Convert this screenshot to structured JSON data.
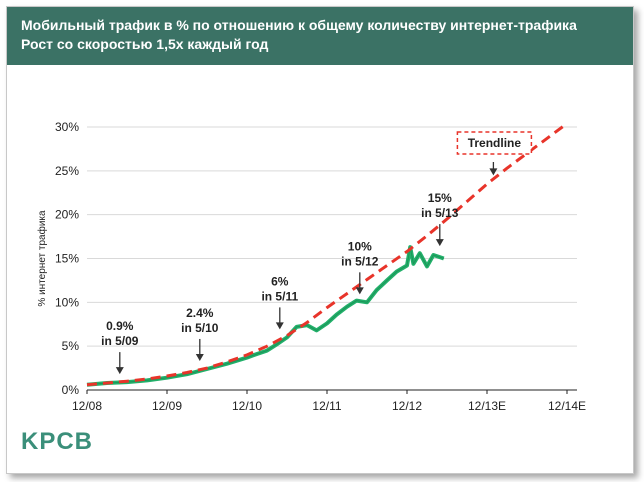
{
  "header": {
    "title": "Мобильный трафик в % по отношению к общему количеству интернет-трафика",
    "subtitle": "Рост со скоростью 1,5x каждый год"
  },
  "logo": {
    "text": "KPCB"
  },
  "colors": {
    "header_bg": "#3b7265",
    "actual": "#22b06a",
    "trend": "#e8342a",
    "logo": "#3b8f7a"
  },
  "chart_data": {
    "type": "line",
    "title": "",
    "ylabel": "% интернет трафика",
    "xlabel": "",
    "ylim": [
      0,
      30
    ],
    "xlim": [
      2008.92,
      2014.92
    ],
    "yticks": [
      {
        "value": 0,
        "label": "0%"
      },
      {
        "value": 5,
        "label": "5%"
      },
      {
        "value": 10,
        "label": "10%"
      },
      {
        "value": 15,
        "label": "15%"
      },
      {
        "value": 20,
        "label": "20%"
      },
      {
        "value": 25,
        "label": "25%"
      },
      {
        "value": 30,
        "label": "30%"
      }
    ],
    "xticks": [
      {
        "value": 2008.92,
        "label": "12/08"
      },
      {
        "value": 2009.92,
        "label": "12/09"
      },
      {
        "value": 2010.92,
        "label": "12/10"
      },
      {
        "value": 2011.92,
        "label": "12/11"
      },
      {
        "value": 2012.92,
        "label": "12/12"
      },
      {
        "value": 2013.92,
        "label": "12/13E"
      },
      {
        "value": 2014.92,
        "label": "12/14E"
      }
    ],
    "grid": true,
    "series": [
      {
        "style": "solid",
        "x": [
          2008.92,
          2009.17,
          2009.42,
          2009.67,
          2009.92,
          2010.17,
          2010.42,
          2010.67,
          2010.92,
          2011.04,
          2011.17,
          2011.29,
          2011.42,
          2011.54,
          2011.67,
          2011.79,
          2011.92,
          2012.04,
          2012.17,
          2012.29,
          2012.42,
          2012.54,
          2012.67,
          2012.79,
          2012.92,
          2012.96,
          2013.0,
          2013.08,
          2013.17,
          2013.25,
          2013.38
        ],
        "y": [
          0.6,
          0.8,
          0.9,
          1.1,
          1.4,
          1.8,
          2.4,
          3.0,
          3.7,
          4.1,
          4.5,
          5.2,
          6.0,
          7.2,
          7.4,
          6.8,
          7.6,
          8.6,
          9.5,
          10.2,
          10.0,
          11.4,
          12.5,
          13.5,
          14.2,
          16.3,
          14.4,
          15.6,
          14.1,
          15.4,
          15.0
        ]
      },
      {
        "name": "Trendline",
        "style": "dashed",
        "x": [
          2008.92,
          2009.17,
          2009.42,
          2009.67,
          2009.92,
          2010.17,
          2010.42,
          2010.67,
          2010.92,
          2011.17,
          2011.42,
          2011.67,
          2011.92,
          2012.17,
          2012.42,
          2012.67,
          2012.92,
          2013.17,
          2013.42,
          2013.67,
          2013.92,
          2014.17,
          2014.42,
          2014.67,
          2014.92
        ],
        "y": [
          0.6,
          0.8,
          1.0,
          1.25,
          1.6,
          2.0,
          2.5,
          3.2,
          4.0,
          5.0,
          6.2,
          7.7,
          9.4,
          11.0,
          12.6,
          14.2,
          15.8,
          17.6,
          19.5,
          21.5,
          23.5,
          25.3,
          27.0,
          28.7,
          30.4
        ]
      }
    ],
    "annotations": [
      {
        "lines": [
          "0.9%",
          "in 5/09"
        ],
        "x": 2009.33,
        "y": 0.9
      },
      {
        "lines": [
          "2.4%",
          "in 5/10"
        ],
        "x": 2010.33,
        "y": 2.4
      },
      {
        "lines": [
          "6%",
          "in 5/11"
        ],
        "x": 2011.33,
        "y": 6.0
      },
      {
        "lines": [
          "10%",
          "in 5/12"
        ],
        "x": 2012.33,
        "y": 10.0
      },
      {
        "lines": [
          "15%",
          "in 5/13"
        ],
        "x": 2013.33,
        "y": 15.5
      }
    ],
    "trend_label": {
      "text": "Trendline",
      "x": 2014.0,
      "y": 23.8
    }
  }
}
